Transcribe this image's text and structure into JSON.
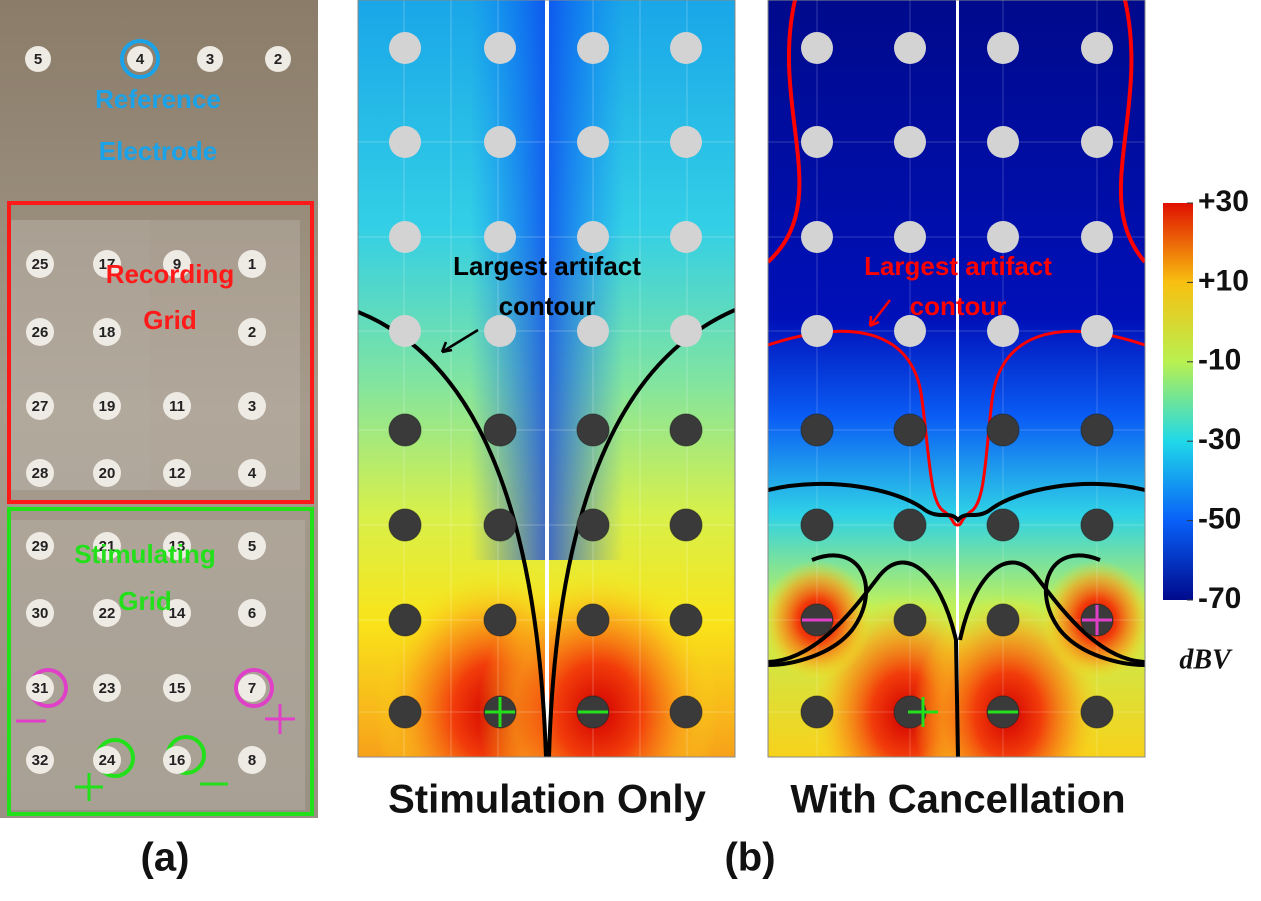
{
  "panel_a": {
    "label": "(a)",
    "reference": {
      "lines": [
        "Reference",
        "Electrode"
      ],
      "numbers": [
        "5",
        "4",
        "3",
        "2"
      ]
    },
    "recording": {
      "lines": [
        "Recording",
        "Grid"
      ],
      "rows": [
        [
          "25",
          "17",
          "9",
          "1"
        ],
        [
          "26",
          "18",
          "2"
        ],
        [
          "27",
          "19",
          "11",
          "3"
        ],
        [
          "28",
          "20",
          "12",
          "4"
        ]
      ]
    },
    "stimulating": {
      "lines": [
        "Stimulating",
        "Grid"
      ],
      "rows": [
        [
          "29",
          "21",
          "13",
          "5"
        ],
        [
          "30",
          "22",
          "14",
          "6"
        ],
        [
          "31",
          "23",
          "15",
          "7"
        ],
        [
          "32",
          "24",
          "16",
          "8"
        ]
      ]
    }
  },
  "panel_b": {
    "label": "(b)",
    "left": {
      "title": "Stimulation Only",
      "annotation": [
        "Largest artifact",
        "contour"
      ]
    },
    "right": {
      "title": "With Cancellation",
      "annotation": [
        "Largest artifact",
        "contour"
      ]
    },
    "colorbar": {
      "range": [
        -70,
        30
      ],
      "unit": "dBV",
      "ticks": [
        {
          "value": 30,
          "label": "+30"
        },
        {
          "value": 10,
          "label": "+10"
        },
        {
          "value": -10,
          "label": "-10"
        },
        {
          "value": -30,
          "label": "-30"
        },
        {
          "value": -50,
          "label": "-50"
        },
        {
          "value": -70,
          "label": "-70"
        }
      ]
    }
  }
}
